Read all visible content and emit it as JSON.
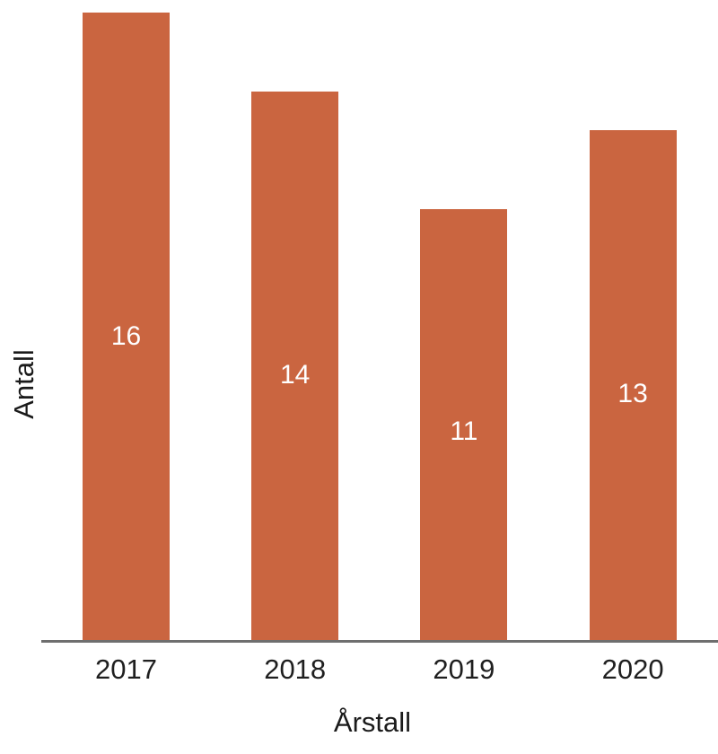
{
  "colors": {
    "bar_fill": "#CA6540",
    "axis_line": "#6E6E6E",
    "axis_text": "#1F1F1F",
    "data_label_text": "#FFFFFF",
    "background": "#FFFFFF"
  },
  "chart_data": {
    "type": "bar",
    "categories": [
      "2017",
      "2018",
      "2019",
      "2020"
    ],
    "values": [
      16,
      14,
      11,
      13
    ],
    "data_labels": [
      16,
      14,
      11,
      13
    ],
    "title": "",
    "xlabel": "Årstall",
    "ylabel": "Antall",
    "ylim": [
      0,
      16.32
    ],
    "grid": false,
    "legend": "none",
    "data_label_position": "center",
    "bar_color": "#CA6540"
  }
}
